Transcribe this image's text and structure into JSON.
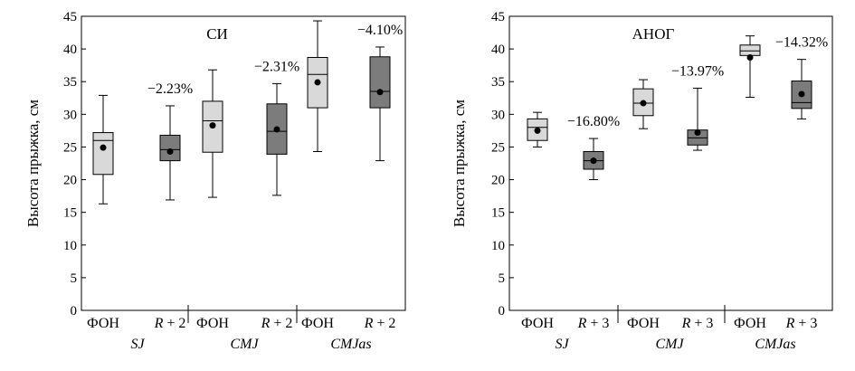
{
  "chart_data": [
    {
      "type": "box",
      "title": "СИ",
      "ylabel": "Высота прыжка, см",
      "ylim": [
        0,
        45
      ],
      "yticks": [
        "0",
        "5",
        "10",
        "15",
        "20",
        "25",
        "30",
        "35",
        "40",
        "45"
      ],
      "groups": [
        {
          "name": "SJ",
          "change_label": "−2.23%",
          "boxes": [
            {
              "label": "ФОН",
              "shade": "light",
              "min": 16.3,
              "q1": 20.8,
              "median": 26.0,
              "q3": 27.2,
              "max": 32.9,
              "mean": 24.9
            },
            {
              "label": "R + 2",
              "shade": "dark",
              "min": 16.9,
              "q1": 22.9,
              "median": 24.6,
              "q3": 26.8,
              "max": 31.3,
              "mean": 24.3
            }
          ]
        },
        {
          "name": "CMJ",
          "change_label": "−2.31%",
          "boxes": [
            {
              "label": "ФОН",
              "shade": "light",
              "min": 17.3,
              "q1": 24.2,
              "median": 29.0,
              "q3": 32.0,
              "max": 36.8,
              "mean": 28.3
            },
            {
              "label": "R + 2",
              "shade": "dark",
              "min": 17.6,
              "q1": 23.9,
              "median": 27.4,
              "q3": 31.6,
              "max": 34.7,
              "mean": 27.7
            }
          ]
        },
        {
          "name": "CMJas",
          "change_label": "−4.10%",
          "boxes": [
            {
              "label": "ФОН",
              "shade": "light",
              "min": 24.3,
              "q1": 31.0,
              "median": 36.1,
              "q3": 38.7,
              "max": 44.3,
              "mean": 34.9
            },
            {
              "label": "R + 2",
              "shade": "dark",
              "min": 22.9,
              "q1": 31.0,
              "median": 33.5,
              "q3": 38.8,
              "max": 40.3,
              "mean": 33.4
            }
          ]
        }
      ]
    },
    {
      "type": "box",
      "title": "АНОГ",
      "ylabel": "Высота прыжка, см",
      "ylim": [
        0,
        45
      ],
      "yticks": [
        "0",
        "5",
        "10",
        "15",
        "20",
        "25",
        "30",
        "35",
        "40",
        "45"
      ],
      "groups": [
        {
          "name": "SJ",
          "change_label": "−16.80%",
          "boxes": [
            {
              "label": "ФОН",
              "shade": "light",
              "min": 25.0,
              "q1": 26.0,
              "median": 28.0,
              "q3": 29.3,
              "max": 30.3,
              "mean": 27.5
            },
            {
              "label": "R + 3",
              "shade": "dark",
              "min": 20.0,
              "q1": 21.6,
              "median": 22.9,
              "q3": 24.3,
              "max": 26.3,
              "mean": 22.9
            }
          ]
        },
        {
          "name": "CMJ",
          "change_label": "−13.97%",
          "boxes": [
            {
              "label": "ФОН",
              "shade": "light",
              "min": 27.8,
              "q1": 29.8,
              "median": 31.7,
              "q3": 33.9,
              "max": 35.3,
              "mean": 31.7
            },
            {
              "label": "R + 3",
              "shade": "dark",
              "min": 24.5,
              "q1": 25.3,
              "median": 26.4,
              "q3": 27.6,
              "max": 34.0,
              "mean": 27.2
            }
          ]
        },
        {
          "name": "CMJas",
          "change_label": "−14.32%",
          "boxes": [
            {
              "label": "ФОН",
              "shade": "light",
              "min": 32.6,
              "q1": 39.0,
              "median": 39.7,
              "q3": 40.6,
              "max": 42.0,
              "mean": 38.7
            },
            {
              "label": "R + 3",
              "shade": "dark",
              "min": 29.3,
              "q1": 30.9,
              "median": 31.8,
              "q3": 35.1,
              "max": 38.4,
              "mean": 33.1
            }
          ]
        }
      ]
    }
  ],
  "colors": {
    "light_box": "#d9d9d9",
    "dark_box": "#7c7c7c",
    "ink": "#000000"
  }
}
